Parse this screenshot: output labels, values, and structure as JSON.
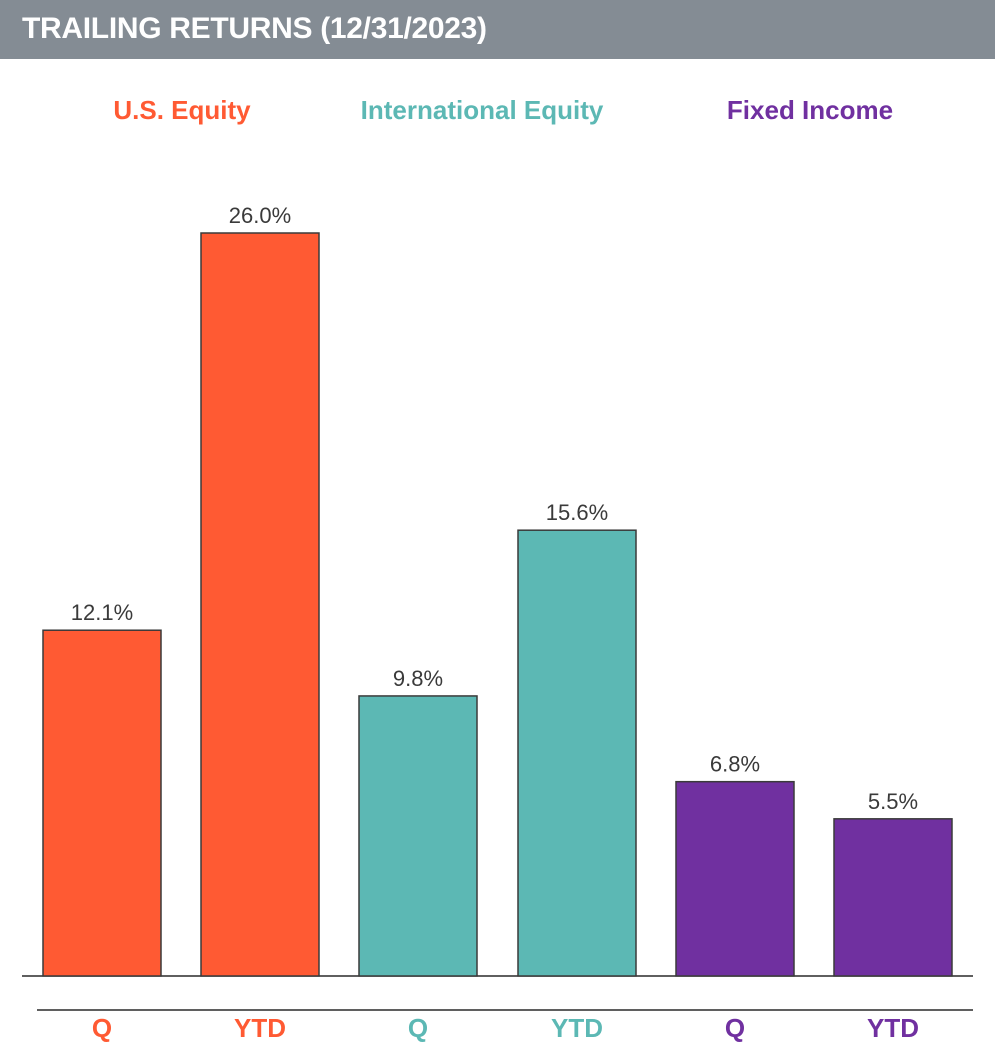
{
  "header": {
    "title": "TRAILING RETURNS (12/31/2023)"
  },
  "colors": {
    "banner": "#848c94",
    "us_equity": "#ff5a33",
    "intl_equity": "#5cb8b4",
    "fixed_income": "#7030a0"
  },
  "chart_data": {
    "type": "bar",
    "title": "TRAILING RETURNS (12/31/2023)",
    "groups": [
      {
        "name": "U.S. Equity",
        "color": "#ff5a33",
        "bars": [
          {
            "category": "Q",
            "value": 12.1,
            "label": "12.1%"
          },
          {
            "category": "YTD",
            "value": 26.0,
            "label": "26.0%"
          }
        ]
      },
      {
        "name": "International Equity",
        "color": "#5cb8b4",
        "bars": [
          {
            "category": "Q",
            "value": 9.8,
            "label": "9.8%"
          },
          {
            "category": "YTD",
            "value": 15.6,
            "label": "15.6%"
          }
        ]
      },
      {
        "name": "Fixed Income",
        "color": "#7030a0",
        "bars": [
          {
            "category": "Q",
            "value": 6.8,
            "label": "6.8%"
          },
          {
            "category": "YTD",
            "value": 5.5,
            "label": "5.5%"
          }
        ]
      }
    ],
    "ylim": [
      0,
      26.0
    ],
    "grid": false,
    "legend": "top"
  }
}
